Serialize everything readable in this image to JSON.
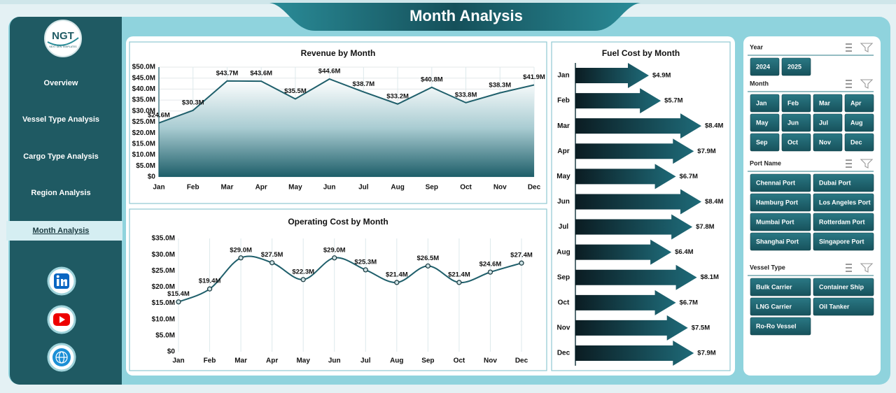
{
  "header": {
    "title": "Month Analysis"
  },
  "logo": {
    "text": "NGT",
    "subtitle": "NEXT GEN TEMPLATES"
  },
  "nav": [
    {
      "label": "Overview"
    },
    {
      "label": "Vessel Type Analysis"
    },
    {
      "label": "Cargo Type Analysis"
    },
    {
      "label": "Region Analysis"
    },
    {
      "label": "Month Analysis",
      "active": true
    }
  ],
  "slicers": [
    {
      "title": "Year",
      "items": [
        "2024",
        "2025"
      ]
    },
    {
      "title": "Month",
      "items": [
        "Jan",
        "Feb",
        "Mar",
        "Apr",
        "May",
        "Jun",
        "Jul",
        "Aug",
        "Sep",
        "Oct",
        "Nov",
        "Dec"
      ]
    },
    {
      "title": "Port Name",
      "items": [
        "Chennai Port",
        "Dubai Port",
        "Hamburg Port",
        "Los Angeles Port",
        "Mumbai Port",
        "Rotterdam Port",
        "Shanghai Port",
        "Singapore Port"
      ]
    },
    {
      "title": "Vessel Type",
      "items": [
        "Bulk Carrier",
        "Container Ship",
        "LNG Carrier",
        "Oil Tanker",
        "Ro-Ro Vessel"
      ]
    }
  ],
  "chart_data": [
    {
      "type": "area",
      "title": "Revenue by Month",
      "color": "#1f5f6b",
      "grid": "both",
      "categories": [
        "Jan",
        "Feb",
        "Mar",
        "Apr",
        "May",
        "Jun",
        "Jul",
        "Aug",
        "Sep",
        "Oct",
        "Nov",
        "Dec"
      ],
      "values": [
        24.6,
        30.3,
        43.7,
        43.6,
        35.5,
        44.6,
        38.7,
        33.2,
        40.8,
        33.8,
        38.3,
        41.9
      ],
      "value_labels": [
        "$24.6M",
        "$30.3M",
        "$43.7M",
        "$43.6M",
        "$35.5M",
        "$44.6M",
        "$38.7M",
        "$33.2M",
        "$40.8M",
        "$33.8M",
        "$38.3M",
        "$41.9M"
      ],
      "ylim": [
        0,
        50
      ],
      "yticks": [
        {
          "value": 0,
          "label": "$0"
        },
        {
          "value": 5,
          "label": "$5.0M"
        },
        {
          "value": 10,
          "label": "$10.0M"
        },
        {
          "value": 15,
          "label": "$15.0M"
        },
        {
          "value": 20,
          "label": "$20.0M"
        },
        {
          "value": 25,
          "label": "$25.0M"
        },
        {
          "value": 30,
          "label": "$30.0M"
        },
        {
          "value": 35,
          "label": "$35.0M"
        },
        {
          "value": 40,
          "label": "$40.0M"
        },
        {
          "value": 45,
          "label": "$45.0M"
        },
        {
          "value": 50,
          "label": "$50.0M"
        }
      ]
    },
    {
      "type": "line",
      "title": "Operating Cost by Month",
      "color": "#1f5f6b",
      "grid": "x",
      "smooth": true,
      "markers": true,
      "categories": [
        "Jan",
        "Feb",
        "Mar",
        "Apr",
        "May",
        "Jun",
        "Jul",
        "Aug",
        "Sep",
        "Oct",
        "Nov",
        "Dec"
      ],
      "values": [
        15.4,
        19.4,
        29.0,
        27.5,
        22.3,
        29.0,
        25.3,
        21.4,
        26.5,
        21.4,
        24.6,
        27.4
      ],
      "value_labels": [
        "$15.4M",
        "$19.4M",
        "$29.0M",
        "$27.5M",
        "$22.3M",
        "$29.0M",
        "$25.3M",
        "$21.4M",
        "$26.5M",
        "$21.4M",
        "$24.6M",
        "$27.4M"
      ],
      "ylim": [
        0,
        35
      ],
      "yticks": [
        {
          "value": 0,
          "label": "$0"
        },
        {
          "value": 5,
          "label": "$5.0M"
        },
        {
          "value": 10,
          "label": "$10.0M"
        },
        {
          "value": 15,
          "label": "$15.0M"
        },
        {
          "value": 20,
          "label": "$20.0M"
        },
        {
          "value": 25,
          "label": "$25.0M"
        },
        {
          "value": 30,
          "label": "$30.0M"
        },
        {
          "value": 35,
          "label": "$35.0M"
        }
      ]
    },
    {
      "type": "arrow",
      "title": "Fuel Cost by Month",
      "color": "#1e6a78",
      "categories": [
        "Jan",
        "Feb",
        "Mar",
        "Apr",
        "May",
        "Jun",
        "Jul",
        "Aug",
        "Sep",
        "Oct",
        "Nov",
        "Dec"
      ],
      "values": [
        4.9,
        5.7,
        8.4,
        7.9,
        6.7,
        8.4,
        7.8,
        6.4,
        8.1,
        6.7,
        7.5,
        7.9
      ],
      "value_labels": [
        "$4.9M",
        "$5.7M",
        "$8.4M",
        "$7.9M",
        "$6.7M",
        "$8.4M",
        "$7.8M",
        "$6.4M",
        "$8.1M",
        "$6.7M",
        "$7.5M",
        "$7.9M"
      ]
    }
  ]
}
